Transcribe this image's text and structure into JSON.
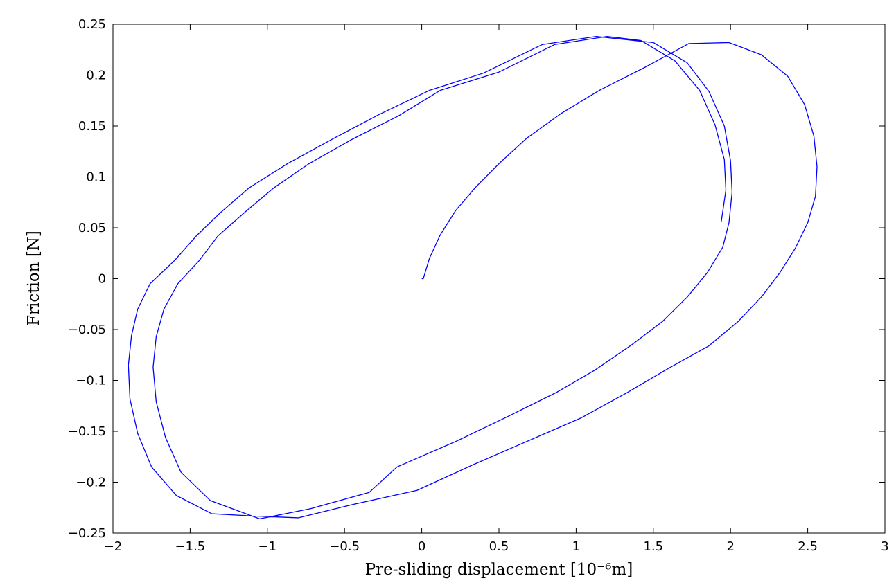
{
  "chart_data": {
    "type": "line",
    "xlabel": "Pre-sliding displacement [10⁻⁶m]",
    "ylabel": "Friction [N]",
    "xlim": [
      -2,
      3
    ],
    "ylim": [
      -0.25,
      0.25
    ],
    "xticks": [
      {
        "value": -2,
        "label": "−2"
      },
      {
        "value": -1.5,
        "label": "−1.5"
      },
      {
        "value": -1,
        "label": "−1"
      },
      {
        "value": -0.5,
        "label": "−0.5"
      },
      0,
      0.5,
      1,
      1.5,
      2,
      2.5,
      3
    ],
    "yticks": [
      {
        "value": -0.25,
        "label": "−0.25"
      },
      {
        "value": -0.2,
        "label": "−0.2"
      },
      {
        "value": -0.15,
        "label": "−0.15"
      },
      {
        "value": -0.1,
        "label": "−0.1"
      },
      {
        "value": -0.05,
        "label": "−0.05"
      },
      0,
      0.05,
      0.1,
      0.15,
      0.2,
      0.25
    ],
    "grid": false,
    "x": [
      0,
      0.01,
      0.05,
      0.12,
      0.22,
      0.35,
      0.5,
      0.68,
      0.9,
      1.15,
      1.45,
      1.73,
      1.99,
      2.2,
      2.37,
      2.48,
      2.54,
      2.56,
      2.55,
      2.5,
      2.42,
      2.32,
      2.2,
      2.05,
      1.86,
      1.6,
      1.33,
      1.03,
      0.68,
      0.33,
      -0.03,
      -0.45,
      -0.8,
      -1.12,
      -1.36,
      -1.59,
      -1.75,
      -1.84,
      -1.89,
      -1.9,
      -1.88,
      -1.84,
      -1.76,
      -1.6,
      -1.46,
      -1.31,
      -1.12,
      -0.87,
      -0.58,
      -0.28,
      0.05,
      0.4,
      0.78,
      1.13,
      1.5,
      1.72,
      1.86,
      1.96,
      2.0,
      2.01,
      1.99,
      1.95,
      1.85,
      1.72,
      1.56,
      1.36,
      1.12,
      0.87,
      0.55,
      0.22,
      -0.16,
      -0.34,
      -0.72,
      -1.05,
      -1.37,
      -1.56,
      -1.66,
      -1.72,
      -1.74,
      -1.72,
      -1.67,
      -1.58,
      -1.44,
      -1.32,
      -1.14,
      -0.96,
      -0.73,
      -0.45,
      -0.15,
      0.12,
      0.5,
      0.86,
      1.2,
      1.42,
      1.64,
      1.8,
      1.9,
      1.96,
      1.97,
      1.94
    ],
    "series": [
      {
        "color": "#0000ff",
        "values": [
          0,
          0,
          0.02,
          0.043,
          0.067,
          0.09,
          0.113,
          0.138,
          0.162,
          0.185,
          0.208,
          0.231,
          0.232,
          0.22,
          0.199,
          0.171,
          0.14,
          0.11,
          0.081,
          0.055,
          0.03,
          0.006,
          -0.018,
          -0.042,
          -0.066,
          -0.088,
          -0.112,
          -0.137,
          -0.16,
          -0.183,
          -0.208,
          -0.222,
          -0.235,
          -0.233,
          -0.231,
          -0.213,
          -0.185,
          -0.152,
          -0.118,
          -0.085,
          -0.056,
          -0.03,
          -0.005,
          0.018,
          0.042,
          0.064,
          0.089,
          0.113,
          0.137,
          0.161,
          0.185,
          0.202,
          0.23,
          0.238,
          0.232,
          0.212,
          0.184,
          0.15,
          0.116,
          0.085,
          0.055,
          0.031,
          0.006,
          -0.018,
          -0.042,
          -0.065,
          -0.09,
          -0.112,
          -0.136,
          -0.16,
          -0.185,
          -0.21,
          -0.226,
          -0.236,
          -0.218,
          -0.19,
          -0.156,
          -0.121,
          -0.087,
          -0.057,
          -0.03,
          -0.005,
          0.018,
          0.042,
          0.066,
          0.089,
          0.113,
          0.137,
          0.16,
          0.185,
          0.203,
          0.23,
          0.238,
          0.234,
          0.214,
          0.185,
          0.151,
          0.117,
          0.087,
          0.056
        ]
      }
    ]
  }
}
